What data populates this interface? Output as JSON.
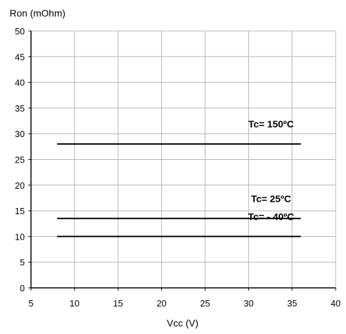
{
  "chart_data": {
    "type": "line",
    "title": "",
    "xlabel": "Vcc (V)",
    "ylabel": "Ron (mOhm)",
    "xlim": [
      5,
      40
    ],
    "ylim": [
      0,
      50
    ],
    "x_ticks": [
      5,
      10,
      15,
      20,
      25,
      30,
      35,
      40
    ],
    "y_ticks": [
      0,
      5,
      10,
      15,
      20,
      25,
      30,
      35,
      40,
      45,
      50
    ],
    "grid": true,
    "series": [
      {
        "name": "Tc= 150ºC",
        "x": [
          8,
          36
        ],
        "values": [
          28,
          28
        ]
      },
      {
        "name": "Tc= 25ºC",
        "x": [
          8,
          36
        ],
        "values": [
          13.5,
          13.5
        ]
      },
      {
        "name": "Tc= - 40ºC",
        "x": [
          8,
          36
        ],
        "values": [
          10,
          10
        ]
      }
    ],
    "colors": {
      "line": "#000000",
      "grid": "#b4b4b4",
      "axis": "#000000"
    }
  }
}
